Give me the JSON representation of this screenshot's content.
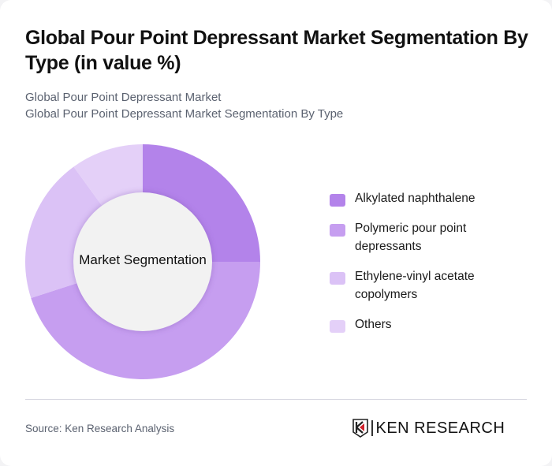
{
  "header": {
    "title": "Global Pour Point Depressant Market Segmentation By Type (in value %)",
    "subtitle_line1": "Global Pour Point Depressant Market",
    "subtitle_line2": "Global Pour Point Depressant Market Segmentation By Type"
  },
  "chart_center_label": "Market Segmentation",
  "legend": [
    {
      "label": "Alkylated naphthalene",
      "color": "#b383ea"
    },
    {
      "label": "Polymeric pour point depressants",
      "color": "#c69ef0"
    },
    {
      "label": "Ethylene-vinyl acetate copolymers",
      "color": "#dbc2f6"
    },
    {
      "label": "Others",
      "color": "#e4d0f8"
    }
  ],
  "footer": {
    "source": "Source: Ken Research Analysis",
    "logo_text": "KEN RESEARCH"
  },
  "chart_data": {
    "type": "pie",
    "subtype": "donut",
    "title": "Global Pour Point Depressant Market Segmentation By Type (in value %)",
    "subtitle": "Global Pour Point Depressant Market / Global Pour Point Depressant Market Segmentation By Type",
    "center_label": "Market Segmentation",
    "categories": [
      "Alkylated naphthalene",
      "Polymeric pour point depressants",
      "Ethylene-vinyl acetate copolymers",
      "Others"
    ],
    "values": [
      25,
      45,
      20,
      10
    ],
    "colors": [
      "#b383ea",
      "#c69ef0",
      "#dbc2f6",
      "#e4d0f8"
    ],
    "legend_position": "right",
    "start_angle": "12 o'clock, clockwise",
    "units": "%"
  }
}
